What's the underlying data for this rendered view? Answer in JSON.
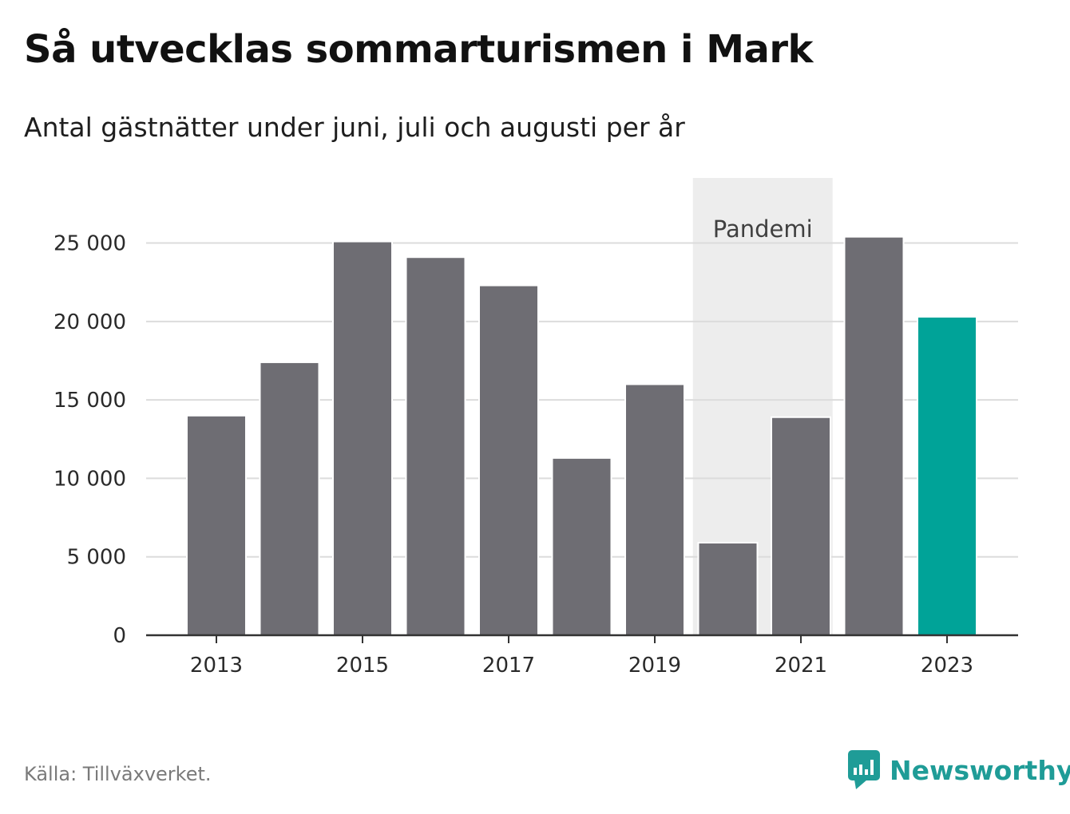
{
  "title": "Så utvecklas sommarturismen i Mark",
  "subtitle": "Antal gästnätter under juni, juli och augusti per år",
  "source": "Källa: Tillväxverket.",
  "brand": "Newsworthy",
  "colors": {
    "bar": "#6e6d73",
    "highlight": "#00a398",
    "band": "#ededed",
    "grid": "#dcdcdc",
    "axis": "#333333",
    "brand": "#1f9c97"
  },
  "chart_data": {
    "type": "bar",
    "categories": [
      "2013",
      "2014",
      "2015",
      "2016",
      "2017",
      "2018",
      "2019",
      "2020",
      "2021",
      "2022",
      "2023"
    ],
    "values": [
      14000,
      17400,
      25100,
      24100,
      22300,
      11300,
      16000,
      5900,
      13900,
      25400,
      20300
    ],
    "highlight_index": 10,
    "xticks": [
      "2013",
      "2015",
      "2017",
      "2019",
      "2021",
      "2023"
    ],
    "yticks": [
      0,
      5000,
      10000,
      15000,
      20000,
      25000
    ],
    "ytick_labels": [
      "0",
      "5 000",
      "10 000",
      "15 000",
      "20 000",
      "25 000"
    ],
    "ylim": [
      0,
      29300
    ],
    "grid": true,
    "band": {
      "label": "Pandemi",
      "from": "2020",
      "to": "2021"
    }
  }
}
